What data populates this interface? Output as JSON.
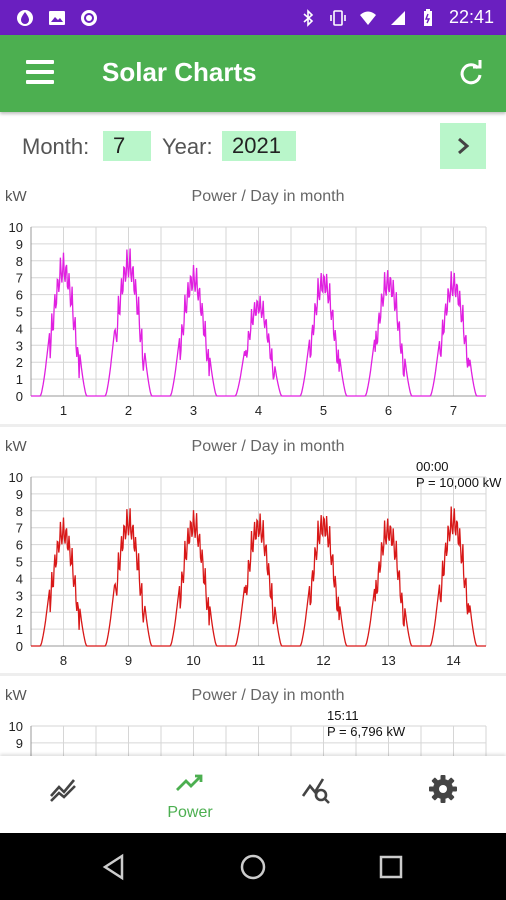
{
  "status_bar": {
    "time": "22:41",
    "icons": [
      "water-drop-icon",
      "image-icon",
      "circle-app-icon",
      "bluetooth-icon",
      "vibrate-icon",
      "wifi-icon",
      "signal-icon",
      "battery-icon"
    ]
  },
  "app_bar": {
    "title": "Solar Charts",
    "menu_icon": "menu-icon",
    "refresh_icon": "refresh-icon"
  },
  "controls": {
    "month_label": "Month:",
    "month_value": "7",
    "year_label": "Year:",
    "year_value": "2021",
    "next_icon": "chevron-right-icon"
  },
  "charts": [
    {
      "unit": "kW",
      "title": "Power / Day in month",
      "color": "#e020e0",
      "days": [
        "1",
        "2",
        "3",
        "4",
        "5",
        "6",
        "7"
      ],
      "y_ticks": [
        "10",
        "9",
        "8",
        "7",
        "6",
        "5",
        "4",
        "3",
        "2",
        "1",
        "0"
      ],
      "peaks": [
        8.7,
        9.0,
        8.0,
        6.2,
        7.8,
        7.8,
        7.6
      ],
      "tooltip": {
        "time": "",
        "value": ""
      }
    },
    {
      "unit": "kW",
      "title": "Power / Day in month",
      "color": "#d81818",
      "days": [
        "8",
        "9",
        "10",
        "11",
        "12",
        "13",
        "14"
      ],
      "y_ticks": [
        "10",
        "9",
        "8",
        "7",
        "6",
        "5",
        "4",
        "3",
        "2",
        "1",
        "0"
      ],
      "peaks": [
        7.8,
        8.4,
        8.3,
        8.2,
        8.3,
        7.9,
        8.5
      ],
      "tooltip": {
        "time": "00:00",
        "value": "P = 10,000 kW"
      }
    },
    {
      "unit": "kW",
      "title": "Power / Day in month",
      "color": "#22bb22",
      "days": [],
      "y_ticks": [
        "10",
        "9"
      ],
      "peaks": [],
      "tooltip": {
        "time": "15:11",
        "value": "P = 6,796 kW"
      }
    }
  ],
  "bottom_nav": {
    "items": [
      {
        "icon": "multi-line-chart-icon",
        "label": ""
      },
      {
        "icon": "trending-up-icon",
        "label": "Power"
      },
      {
        "icon": "chart-search-icon",
        "label": ""
      },
      {
        "icon": "gear-icon",
        "label": ""
      }
    ],
    "active": "Power",
    "active_color": "#4caf50"
  },
  "system_nav": [
    "back-icon",
    "home-icon",
    "recents-icon"
  ]
}
